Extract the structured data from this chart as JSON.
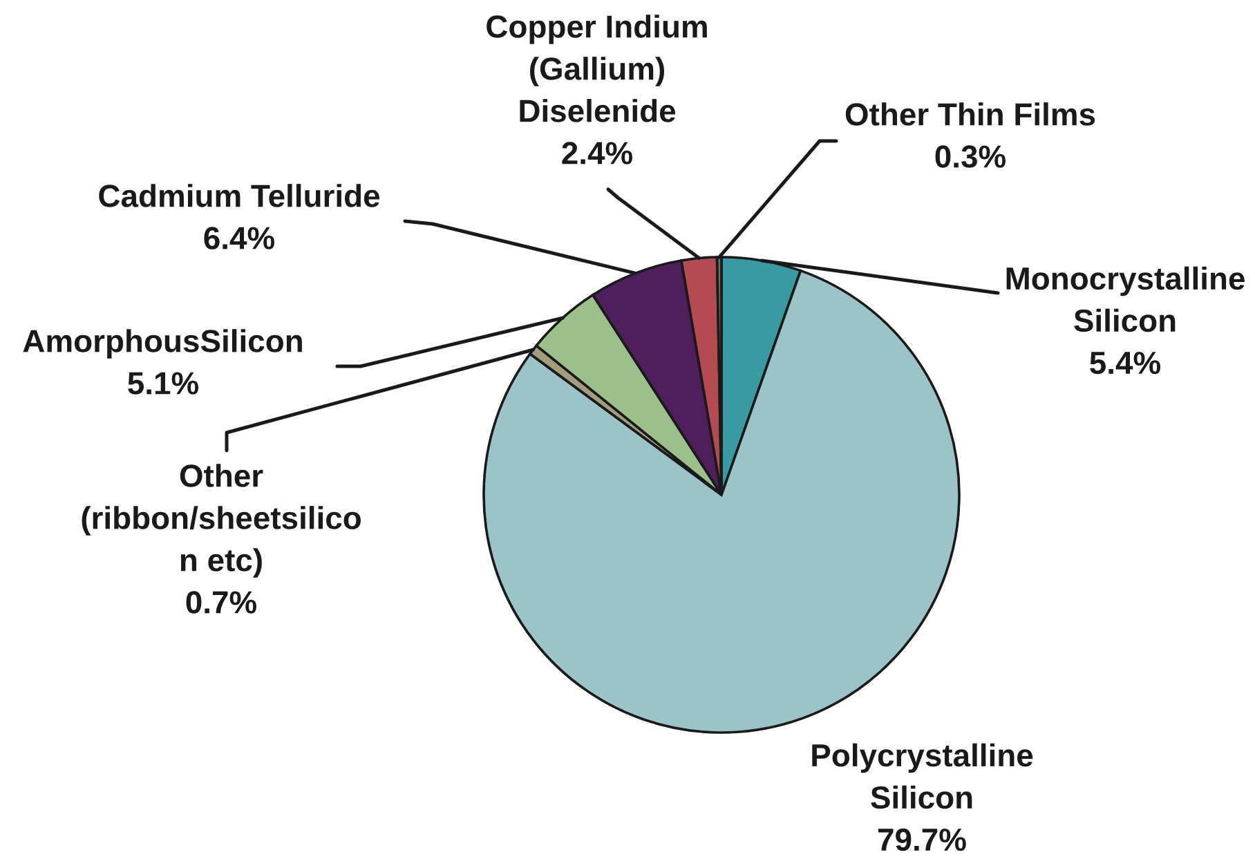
{
  "chart_data": {
    "type": "pie",
    "categories": [
      "Monocrystalline\nSilicon",
      "Polycrystalline\nSilicon",
      "Other\n(ribbon/sheetsilico\nn etc)",
      "AmorphousSilicon",
      "Cadmium Telluride",
      "Copper Indium\n(Gallium)\nDiselenide",
      "Other Thin Films"
    ],
    "values": [
      5.4,
      79.7,
      0.7,
      5.1,
      6.4,
      2.4,
      0.3
    ],
    "value_labels": [
      "5.4%",
      "79.7%",
      "0.7%",
      "5.1%",
      "6.4%",
      "2.4%",
      "0.3%"
    ],
    "colors": [
      "#3a9aa2",
      "#9cc4c8",
      "#a39d7e",
      "#9cc08c",
      "#4f1f5c",
      "#b44a52",
      "#5f6f66"
    ]
  }
}
